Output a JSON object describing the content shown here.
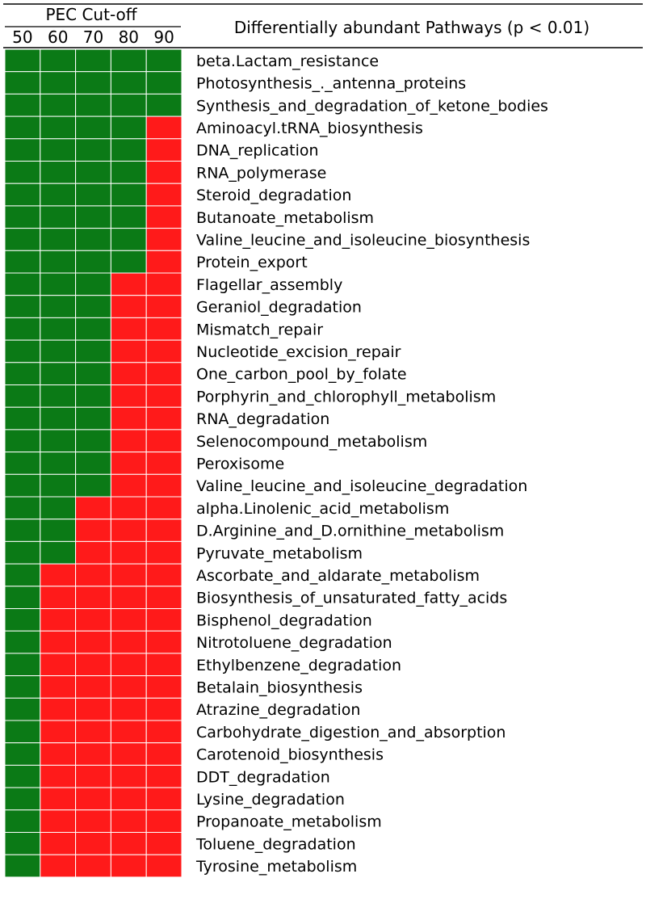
{
  "chart_data": {
    "type": "heatmap",
    "header": {
      "group_label": "PEC Cut-off",
      "columns": [
        "50",
        "60",
        "70",
        "80",
        "90"
      ],
      "row_header": "Differentially abundant Pathways (p < 0.01)"
    },
    "colors": {
      "present": "#0b7a16",
      "absent": "#ff1a1a",
      "grid": "#ffffff",
      "rule": "#000000"
    },
    "legend_semantics": "cells: 1 = green, 0 = red",
    "rows": [
      {
        "label": "beta.Lactam_resistance",
        "values": [
          1,
          1,
          1,
          1,
          1
        ]
      },
      {
        "label": "Photosynthesis_._antenna_proteins",
        "values": [
          1,
          1,
          1,
          1,
          1
        ]
      },
      {
        "label": "Synthesis_and_degradation_of_ketone_bodies",
        "values": [
          1,
          1,
          1,
          1,
          1
        ]
      },
      {
        "label": "Aminoacyl.tRNA_biosynthesis",
        "values": [
          1,
          1,
          1,
          1,
          0
        ]
      },
      {
        "label": "DNA_replication",
        "values": [
          1,
          1,
          1,
          1,
          0
        ]
      },
      {
        "label": "RNA_polymerase",
        "values": [
          1,
          1,
          1,
          1,
          0
        ]
      },
      {
        "label": "Steroid_degradation",
        "values": [
          1,
          1,
          1,
          1,
          0
        ]
      },
      {
        "label": "Butanoate_metabolism",
        "values": [
          1,
          1,
          1,
          1,
          0
        ]
      },
      {
        "label": "Valine_leucine_and_isoleucine_biosynthesis",
        "values": [
          1,
          1,
          1,
          1,
          0
        ]
      },
      {
        "label": "Protein_export",
        "values": [
          1,
          1,
          1,
          1,
          0
        ]
      },
      {
        "label": "Flagellar_assembly",
        "values": [
          1,
          1,
          1,
          0,
          0
        ]
      },
      {
        "label": "Geraniol_degradation",
        "values": [
          1,
          1,
          1,
          0,
          0
        ]
      },
      {
        "label": "Mismatch_repair",
        "values": [
          1,
          1,
          1,
          0,
          0
        ]
      },
      {
        "label": "Nucleotide_excision_repair",
        "values": [
          1,
          1,
          1,
          0,
          0
        ]
      },
      {
        "label": "One_carbon_pool_by_folate",
        "values": [
          1,
          1,
          1,
          0,
          0
        ]
      },
      {
        "label": "Porphyrin_and_chlorophyll_metabolism",
        "values": [
          1,
          1,
          1,
          0,
          0
        ]
      },
      {
        "label": "RNA_degradation",
        "values": [
          1,
          1,
          1,
          0,
          0
        ]
      },
      {
        "label": "Selenocompound_metabolism",
        "values": [
          1,
          1,
          1,
          0,
          0
        ]
      },
      {
        "label": "Peroxisome",
        "values": [
          1,
          1,
          1,
          0,
          0
        ]
      },
      {
        "label": "Valine_leucine_and_isoleucine_degradation",
        "values": [
          1,
          1,
          1,
          0,
          0
        ]
      },
      {
        "label": "alpha.Linolenic_acid_metabolism",
        "values": [
          1,
          1,
          0,
          0,
          0
        ]
      },
      {
        "label": "D.Arginine_and_D.ornithine_metabolism",
        "values": [
          1,
          1,
          0,
          0,
          0
        ]
      },
      {
        "label": "Pyruvate_metabolism",
        "values": [
          1,
          1,
          0,
          0,
          0
        ]
      },
      {
        "label": "Ascorbate_and_aldarate_metabolism",
        "values": [
          1,
          0,
          0,
          0,
          0
        ]
      },
      {
        "label": "Biosynthesis_of_unsaturated_fatty_acids",
        "values": [
          1,
          0,
          0,
          0,
          0
        ]
      },
      {
        "label": "Bisphenol_degradation",
        "values": [
          1,
          0,
          0,
          0,
          0
        ]
      },
      {
        "label": "Nitrotoluene_degradation",
        "values": [
          1,
          0,
          0,
          0,
          0
        ]
      },
      {
        "label": "Ethylbenzene_degradation",
        "values": [
          1,
          0,
          0,
          0,
          0
        ]
      },
      {
        "label": "Betalain_biosynthesis",
        "values": [
          1,
          0,
          0,
          0,
          0
        ]
      },
      {
        "label": "Atrazine_degradation",
        "values": [
          1,
          0,
          0,
          0,
          0
        ]
      },
      {
        "label": "Carbohydrate_digestion_and_absorption",
        "values": [
          1,
          0,
          0,
          0,
          0
        ]
      },
      {
        "label": "Carotenoid_biosynthesis",
        "values": [
          1,
          0,
          0,
          0,
          0
        ]
      },
      {
        "label": "DDT_degradation",
        "values": [
          1,
          0,
          0,
          0,
          0
        ]
      },
      {
        "label": "Lysine_degradation",
        "values": [
          1,
          0,
          0,
          0,
          0
        ]
      },
      {
        "label": "Propanoate_metabolism",
        "values": [
          1,
          0,
          0,
          0,
          0
        ]
      },
      {
        "label": "Toluene_degradation",
        "values": [
          1,
          0,
          0,
          0,
          0
        ]
      },
      {
        "label": "Tyrosine_metabolism",
        "values": [
          1,
          0,
          0,
          0,
          0
        ]
      }
    ]
  }
}
